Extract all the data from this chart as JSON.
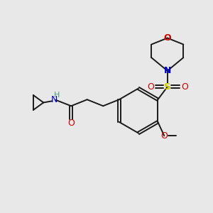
{
  "bg_color": "#e8e8e8",
  "bond_color": "#1a1a1a",
  "O_color": "#cc0000",
  "N_color": "#0000cc",
  "S_color": "#cccc00",
  "H_color": "#4a9a7a",
  "figsize": [
    3.0,
    3.0
  ],
  "dpi": 100,
  "xlim": [
    0,
    10
  ],
  "ylim": [
    0,
    10
  ]
}
